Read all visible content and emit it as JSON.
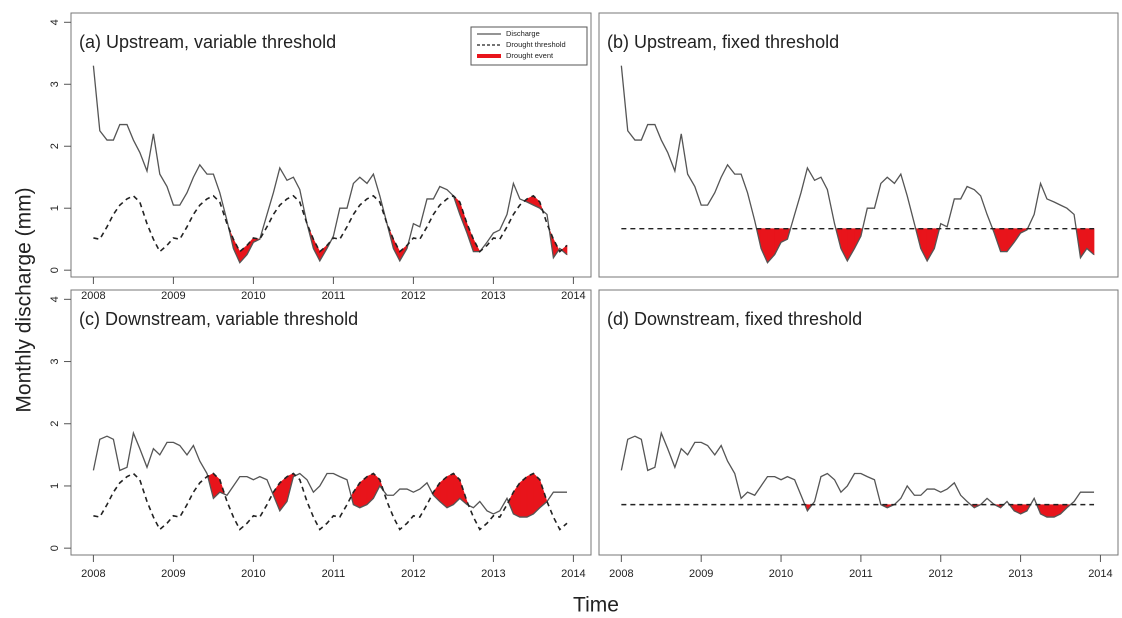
{
  "ylabel": "Monthly discharge (mm)",
  "xlabel": "Time",
  "chart_data": [
    {
      "type": "line",
      "title": "(a) Upstream, variable threshold",
      "legend": "upper right",
      "event_name": "Drought event",
      "event_color": "#e8141b",
      "xlim": [
        2007.72,
        2014.22
      ],
      "ylim": [
        -0.11,
        4.15
      ],
      "xticks": [
        2008,
        2009,
        2010,
        2011,
        2012,
        2013,
        2014
      ],
      "yticks": [
        0,
        1,
        2,
        3,
        4
      ],
      "x": [
        2008,
        2008.08,
        2008.17,
        2008.25,
        2008.33,
        2008.42,
        2008.5,
        2008.58,
        2008.67,
        2008.75,
        2008.83,
        2008.92,
        2009,
        2009.08,
        2009.17,
        2009.25,
        2009.33,
        2009.42,
        2009.5,
        2009.58,
        2009.67,
        2009.75,
        2009.83,
        2009.92,
        2010,
        2010.08,
        2010.17,
        2010.25,
        2010.33,
        2010.42,
        2010.5,
        2010.58,
        2010.67,
        2010.75,
        2010.83,
        2010.92,
        2011,
        2011.08,
        2011.17,
        2011.25,
        2011.33,
        2011.42,
        2011.5,
        2011.58,
        2011.67,
        2011.75,
        2011.83,
        2011.92,
        2012,
        2012.08,
        2012.17,
        2012.25,
        2012.33,
        2012.42,
        2012.5,
        2012.58,
        2012.67,
        2012.75,
        2012.83,
        2012.92,
        2013,
        2013.08,
        2013.17,
        2013.25,
        2013.33,
        2013.42,
        2013.5,
        2013.58,
        2013.67,
        2013.75,
        2013.83,
        2013.92
      ],
      "series": [
        {
          "name": "Discharge",
          "color": "#555555",
          "linestyle": "solid",
          "values": [
            3.3,
            2.25,
            2.1,
            2.1,
            2.35,
            2.35,
            2.1,
            1.9,
            1.6,
            2.2,
            1.55,
            1.35,
            1.05,
            1.05,
            1.25,
            1.5,
            1.7,
            1.55,
            1.55,
            1.25,
            0.8,
            0.35,
            0.12,
            0.25,
            0.45,
            0.5,
            0.9,
            1.25,
            1.65,
            1.45,
            1.5,
            1.3,
            0.75,
            0.35,
            0.15,
            0.35,
            0.55,
            1.0,
            1.0,
            1.4,
            1.5,
            1.4,
            1.55,
            1.2,
            0.75,
            0.35,
            0.15,
            0.35,
            0.75,
            0.7,
            1.15,
            1.15,
            1.35,
            1.3,
            1.2,
            0.9,
            0.6,
            0.3,
            0.3,
            0.45,
            0.6,
            0.65,
            0.9,
            1.4,
            1.15,
            1.1,
            1.05,
            1.0,
            0.9,
            0.2,
            0.35,
            0.25
          ]
        },
        {
          "name": "Drought threshold",
          "color": "#222222",
          "linestyle": "dashed",
          "values": [
            0.52,
            0.5,
            0.7,
            0.9,
            1.05,
            1.15,
            1.2,
            1.1,
            0.75,
            0.5,
            0.3,
            0.4,
            0.52,
            0.5,
            0.7,
            0.9,
            1.05,
            1.15,
            1.2,
            1.1,
            0.75,
            0.5,
            0.3,
            0.4,
            0.52,
            0.5,
            0.7,
            0.9,
            1.05,
            1.15,
            1.2,
            1.1,
            0.75,
            0.5,
            0.3,
            0.4,
            0.52,
            0.5,
            0.7,
            0.9,
            1.05,
            1.15,
            1.2,
            1.1,
            0.75,
            0.5,
            0.3,
            0.4,
            0.52,
            0.5,
            0.7,
            0.9,
            1.05,
            1.15,
            1.2,
            1.1,
            0.75,
            0.5,
            0.3,
            0.4,
            0.52,
            0.5,
            0.7,
            0.9,
            1.05,
            1.15,
            1.2,
            1.1,
            0.75,
            0.5,
            0.3,
            0.4
          ]
        }
      ]
    },
    {
      "type": "line",
      "title": "(b) Upstream, fixed threshold",
      "event_color": "#e8141b",
      "threshold": 0.67,
      "threshold_color": "#222222",
      "xlim": [
        2007.72,
        2014.22
      ],
      "ylim": [
        -0.11,
        4.15
      ],
      "x": [
        2008,
        2008.08,
        2008.17,
        2008.25,
        2008.33,
        2008.42,
        2008.5,
        2008.58,
        2008.67,
        2008.75,
        2008.83,
        2008.92,
        2009,
        2009.08,
        2009.17,
        2009.25,
        2009.33,
        2009.42,
        2009.5,
        2009.58,
        2009.67,
        2009.75,
        2009.83,
        2009.92,
        2010,
        2010.08,
        2010.17,
        2010.25,
        2010.33,
        2010.42,
        2010.5,
        2010.58,
        2010.67,
        2010.75,
        2010.83,
        2010.92,
        2011,
        2011.08,
        2011.17,
        2011.25,
        2011.33,
        2011.42,
        2011.5,
        2011.58,
        2011.67,
        2011.75,
        2011.83,
        2011.92,
        2012,
        2012.08,
        2012.17,
        2012.25,
        2012.33,
        2012.42,
        2012.5,
        2012.58,
        2012.67,
        2012.75,
        2012.83,
        2012.92,
        2013,
        2013.08,
        2013.17,
        2013.25,
        2013.33,
        2013.42,
        2013.5,
        2013.58,
        2013.67,
        2013.75,
        2013.83,
        2013.92
      ],
      "series": [
        {
          "color": "#555555",
          "linestyle": "solid",
          "values": [
            3.3,
            2.25,
            2.1,
            2.1,
            2.35,
            2.35,
            2.1,
            1.9,
            1.6,
            2.2,
            1.55,
            1.35,
            1.05,
            1.05,
            1.25,
            1.5,
            1.7,
            1.55,
            1.55,
            1.25,
            0.8,
            0.35,
            0.12,
            0.25,
            0.45,
            0.5,
            0.9,
            1.25,
            1.65,
            1.45,
            1.5,
            1.3,
            0.75,
            0.35,
            0.15,
            0.35,
            0.55,
            1.0,
            1.0,
            1.4,
            1.5,
            1.4,
            1.55,
            1.2,
            0.75,
            0.35,
            0.15,
            0.35,
            0.75,
            0.7,
            1.15,
            1.15,
            1.35,
            1.3,
            1.2,
            0.9,
            0.6,
            0.3,
            0.3,
            0.45,
            0.6,
            0.65,
            0.9,
            1.4,
            1.15,
            1.1,
            1.05,
            1.0,
            0.9,
            0.2,
            0.35,
            0.25
          ]
        }
      ]
    },
    {
      "type": "line",
      "title": "(c) Downstream, variable threshold",
      "event_color": "#e8141b",
      "xlim": [
        2007.72,
        2014.22
      ],
      "ylim": [
        -0.11,
        4.15
      ],
      "xticks": [
        2008,
        2009,
        2010,
        2011,
        2012,
        2013,
        2014
      ],
      "yticks": [
        0,
        1,
        2,
        3,
        4
      ],
      "x": [
        2008,
        2008.08,
        2008.17,
        2008.25,
        2008.33,
        2008.42,
        2008.5,
        2008.58,
        2008.67,
        2008.75,
        2008.83,
        2008.92,
        2009,
        2009.08,
        2009.17,
        2009.25,
        2009.33,
        2009.42,
        2009.5,
        2009.58,
        2009.67,
        2009.75,
        2009.83,
        2009.92,
        2010,
        2010.08,
        2010.17,
        2010.25,
        2010.33,
        2010.42,
        2010.5,
        2010.58,
        2010.67,
        2010.75,
        2010.83,
        2010.92,
        2011,
        2011.08,
        2011.17,
        2011.25,
        2011.33,
        2011.42,
        2011.5,
        2011.58,
        2011.67,
        2011.75,
        2011.83,
        2011.92,
        2012,
        2012.08,
        2012.17,
        2012.25,
        2012.33,
        2012.42,
        2012.5,
        2012.58,
        2012.67,
        2012.75,
        2012.83,
        2012.92,
        2013,
        2013.08,
        2013.17,
        2013.25,
        2013.33,
        2013.42,
        2013.5,
        2013.58,
        2013.67,
        2013.75,
        2013.83,
        2013.92
      ],
      "series": [
        {
          "color": "#555555",
          "linestyle": "solid",
          "values": [
            1.25,
            1.75,
            1.8,
            1.75,
            1.25,
            1.3,
            1.85,
            1.6,
            1.3,
            1.6,
            1.5,
            1.7,
            1.7,
            1.65,
            1.5,
            1.65,
            1.4,
            1.2,
            0.8,
            0.9,
            0.85,
            1.0,
            1.15,
            1.15,
            1.1,
            1.15,
            1.1,
            0.85,
            0.6,
            0.75,
            1.15,
            1.2,
            1.1,
            0.9,
            1.0,
            1.2,
            1.2,
            1.15,
            1.1,
            0.7,
            0.65,
            0.7,
            0.8,
            1.0,
            0.85,
            0.85,
            0.95,
            0.95,
            0.9,
            0.95,
            1.05,
            0.85,
            0.75,
            0.65,
            0.7,
            0.8,
            0.7,
            0.65,
            0.75,
            0.6,
            0.55,
            0.6,
            0.8,
            0.55,
            0.5,
            0.5,
            0.55,
            0.65,
            0.75,
            0.9,
            0.9,
            0.9
          ]
        },
        {
          "color": "#222222",
          "linestyle": "dashed",
          "values": [
            0.52,
            0.5,
            0.7,
            0.9,
            1.05,
            1.15,
            1.2,
            1.1,
            0.75,
            0.5,
            0.3,
            0.4,
            0.52,
            0.5,
            0.7,
            0.9,
            1.05,
            1.15,
            1.2,
            1.1,
            0.75,
            0.5,
            0.3,
            0.4,
            0.52,
            0.5,
            0.7,
            0.9,
            1.05,
            1.15,
            1.2,
            1.1,
            0.75,
            0.5,
            0.3,
            0.4,
            0.52,
            0.5,
            0.7,
            0.9,
            1.05,
            1.15,
            1.2,
            1.1,
            0.75,
            0.5,
            0.3,
            0.4,
            0.52,
            0.5,
            0.7,
            0.9,
            1.05,
            1.15,
            1.2,
            1.1,
            0.75,
            0.5,
            0.3,
            0.4,
            0.52,
            0.5,
            0.7,
            0.9,
            1.05,
            1.15,
            1.2,
            1.1,
            0.75,
            0.5,
            0.3,
            0.4
          ]
        }
      ]
    },
    {
      "type": "line",
      "title": "(d) Downstream, fixed threshold",
      "event_color": "#e8141b",
      "threshold": 0.7,
      "threshold_color": "#222222",
      "xlim": [
        2007.72,
        2014.22
      ],
      "ylim": [
        -0.11,
        4.15
      ],
      "xticks": [
        2008,
        2009,
        2010,
        2011,
        2012,
        2013,
        2014
      ],
      "x": [
        2008,
        2008.08,
        2008.17,
        2008.25,
        2008.33,
        2008.42,
        2008.5,
        2008.58,
        2008.67,
        2008.75,
        2008.83,
        2008.92,
        2009,
        2009.08,
        2009.17,
        2009.25,
        2009.33,
        2009.42,
        2009.5,
        2009.58,
        2009.67,
        2009.75,
        2009.83,
        2009.92,
        2010,
        2010.08,
        2010.17,
        2010.25,
        2010.33,
        2010.42,
        2010.5,
        2010.58,
        2010.67,
        2010.75,
        2010.83,
        2010.92,
        2011,
        2011.08,
        2011.17,
        2011.25,
        2011.33,
        2011.42,
        2011.5,
        2011.58,
        2011.67,
        2011.75,
        2011.83,
        2011.92,
        2012,
        2012.08,
        2012.17,
        2012.25,
        2012.33,
        2012.42,
        2012.5,
        2012.58,
        2012.67,
        2012.75,
        2012.83,
        2012.92,
        2013,
        2013.08,
        2013.17,
        2013.25,
        2013.33,
        2013.42,
        2013.5,
        2013.58,
        2013.67,
        2013.75,
        2013.83,
        2013.92
      ],
      "series": [
        {
          "color": "#555555",
          "linestyle": "solid",
          "values": [
            1.25,
            1.75,
            1.8,
            1.75,
            1.25,
            1.3,
            1.85,
            1.6,
            1.3,
            1.6,
            1.5,
            1.7,
            1.7,
            1.65,
            1.5,
            1.65,
            1.4,
            1.2,
            0.8,
            0.9,
            0.85,
            1.0,
            1.15,
            1.15,
            1.1,
            1.15,
            1.1,
            0.85,
            0.6,
            0.75,
            1.15,
            1.2,
            1.1,
            0.9,
            1.0,
            1.2,
            1.2,
            1.15,
            1.1,
            0.7,
            0.65,
            0.7,
            0.8,
            1.0,
            0.85,
            0.85,
            0.95,
            0.95,
            0.9,
            0.95,
            1.05,
            0.85,
            0.75,
            0.65,
            0.7,
            0.8,
            0.7,
            0.65,
            0.75,
            0.6,
            0.55,
            0.6,
            0.8,
            0.55,
            0.5,
            0.5,
            0.55,
            0.65,
            0.75,
            0.9,
            0.9,
            0.9
          ]
        }
      ]
    }
  ]
}
